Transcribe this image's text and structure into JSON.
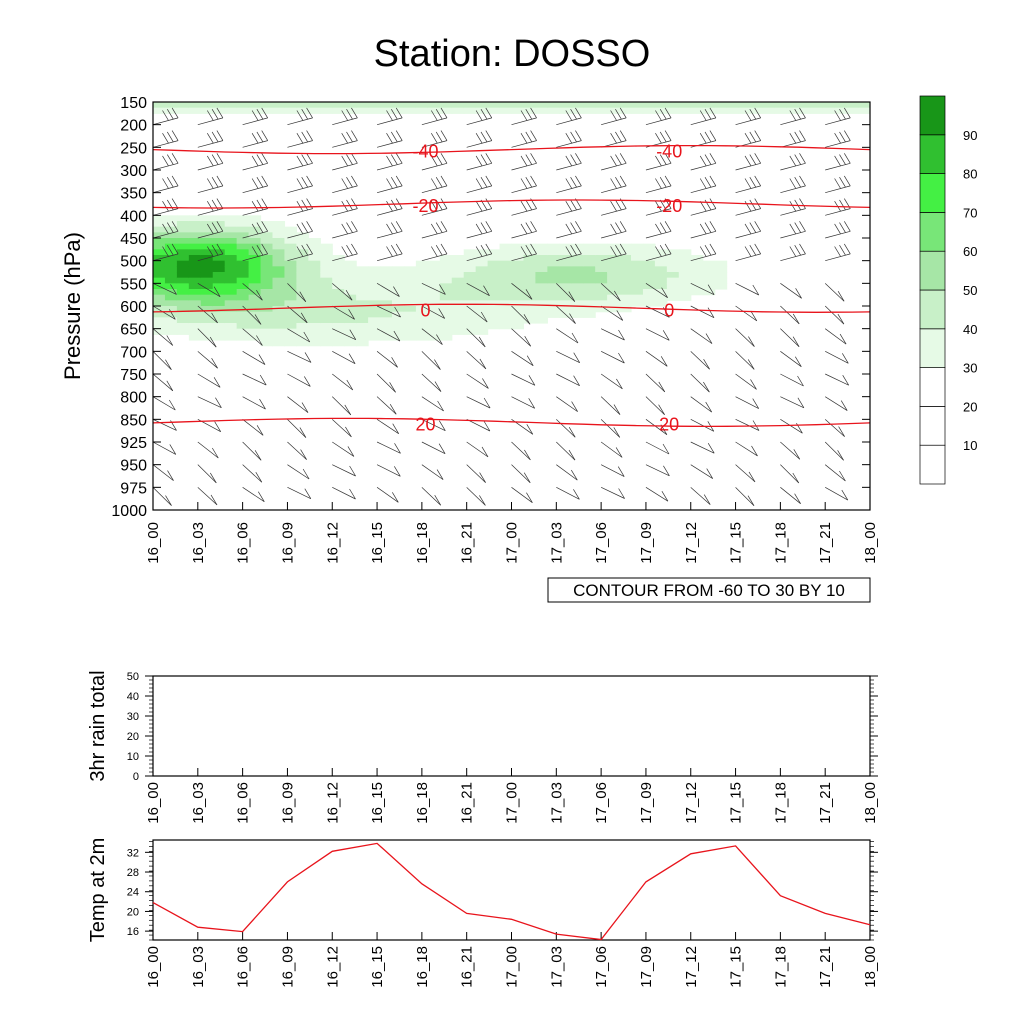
{
  "title": "Station: DOSSO",
  "colors": {
    "temp_line": "#e8141c",
    "iso_line": "#e8141c",
    "contour": "#000000",
    "frame": "#000000"
  },
  "time_labels": [
    "16_00",
    "16_03",
    "16_06",
    "16_09",
    "16_12",
    "16_15",
    "16_18",
    "16_21",
    "17_00",
    "17_03",
    "17_06",
    "17_09",
    "17_12",
    "17_15",
    "17_18",
    "17_21",
    "18_00"
  ],
  "chart_data": [
    {
      "type": "heatmap",
      "name": "cross-section",
      "ylabel": "Pressure (hPa)",
      "pressure_levels": [
        150,
        200,
        250,
        300,
        350,
        400,
        450,
        500,
        550,
        600,
        650,
        700,
        750,
        800,
        850,
        925,
        950,
        975,
        1000
      ],
      "contour_note": "CONTOUR FROM -60 TO 30 BY 10",
      "colorbar": {
        "levels": [
          10,
          20,
          30,
          40,
          50,
          60,
          70,
          80,
          90
        ],
        "colors": [
          "#ffffff",
          "#ffffff",
          "#ffffff",
          "#e6fae6",
          "#c8f0c8",
          "#a6e6a6",
          "#78e678",
          "#44f044",
          "#30c030",
          "#189618"
        ]
      },
      "isotherms": [
        {
          "label": "-40",
          "pressure": 255
        },
        {
          "label": "-20",
          "pressure": 375
        },
        {
          "label": "0",
          "pressure": 605
        },
        {
          "label": "20",
          "pressure": 860
        }
      ],
      "rh_contour_labels": [
        "10",
        "20",
        "30",
        "50",
        "70",
        "90"
      ]
    },
    {
      "type": "line",
      "name": "rain",
      "ylabel": "3hr rain total",
      "ylim": [
        0,
        50
      ],
      "yticks": [
        0,
        10,
        20,
        30,
        40,
        50
      ],
      "values": []
    },
    {
      "type": "line",
      "name": "temperature",
      "ylabel": "Temp at 2m",
      "ylim": [
        14.2,
        34.5
      ],
      "yticks": [
        16,
        20,
        24,
        28,
        32
      ],
      "values": [
        21.8,
        16.8,
        15.9,
        26.0,
        32.2,
        33.8,
        25.6,
        19.6,
        18.4,
        15.4,
        14.3,
        26.0,
        31.7,
        33.3,
        23.2,
        19.6,
        17.3
      ]
    }
  ]
}
